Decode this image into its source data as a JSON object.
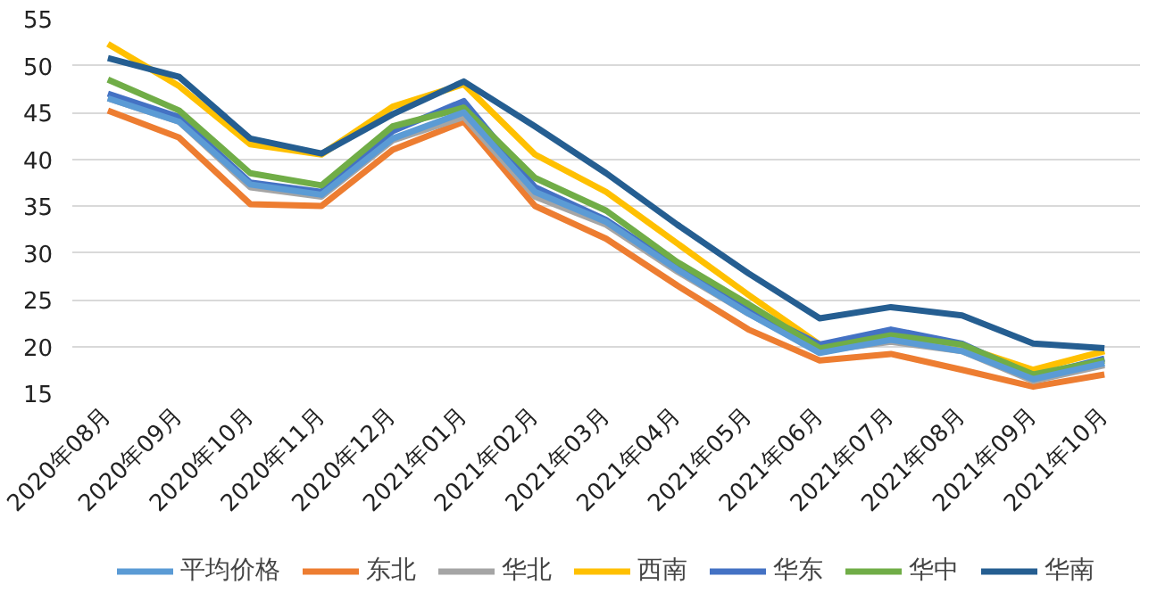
{
  "chart_data": {
    "type": "line",
    "categories": [
      "2020年08月",
      "2020年09月",
      "2020年10月",
      "2020年11月",
      "2020年12月",
      "2021年01月",
      "2021年02月",
      "2021年03月",
      "2021年04月",
      "2021年05月",
      "2021年06月",
      "2021年07月",
      "2021年08月",
      "2021年09月",
      "2021年10月"
    ],
    "ylim": [
      15,
      55
    ],
    "yticks": [
      15,
      20,
      25,
      30,
      35,
      40,
      45,
      50,
      55
    ],
    "grid": "y",
    "legend": "bottom",
    "marker": "none",
    "line_style": "solid",
    "series": [
      {
        "name": "平均价格",
        "color": "#5b9bd5",
        "values": [
          46.5,
          44,
          37.3,
          36.2,
          42.2,
          45,
          36.5,
          33.3,
          28.2,
          23.5,
          19.3,
          20.7,
          19.5,
          16.5,
          18.2
        ]
      },
      {
        "name": "东北",
        "color": "#ed7d31",
        "values": [
          45.2,
          42.3,
          35.2,
          35,
          41,
          44,
          35,
          31.5,
          26.5,
          21.8,
          18.5,
          19.2,
          17.5,
          15.7,
          17
        ]
      },
      {
        "name": "华北",
        "color": "#a5a5a5",
        "values": [
          46.5,
          44,
          37,
          36,
          42,
          44.5,
          36,
          33,
          28,
          23.5,
          19.5,
          20.5,
          19.5,
          16.3,
          18
        ]
      },
      {
        "name": "西南",
        "color": "#ffc000",
        "values": [
          52.3,
          47.8,
          41.6,
          40.5,
          45.6,
          48,
          40.5,
          36.5,
          31,
          25.5,
          20.2,
          20.8,
          20,
          17.5,
          19.5
        ]
      },
      {
        "name": "华东",
        "color": "#4472c4",
        "values": [
          47,
          44.5,
          37.5,
          36.5,
          43,
          46.2,
          37,
          33.5,
          28.5,
          24,
          20.2,
          21.8,
          20.3,
          16.8,
          18.7
        ]
      },
      {
        "name": "华中",
        "color": "#70ad47",
        "values": [
          48.5,
          45.2,
          38.5,
          37.2,
          43.5,
          45.5,
          38,
          34.5,
          29,
          24.5,
          19.8,
          21.2,
          20.2,
          17,
          18.5
        ]
      },
      {
        "name": "华南",
        "color": "#255e91",
        "values": [
          50.8,
          48.8,
          42.2,
          40.6,
          44.8,
          48.3,
          43.5,
          38.5,
          33,
          27.8,
          23,
          24.2,
          23.3,
          20.3,
          19.8
        ]
      }
    ]
  }
}
